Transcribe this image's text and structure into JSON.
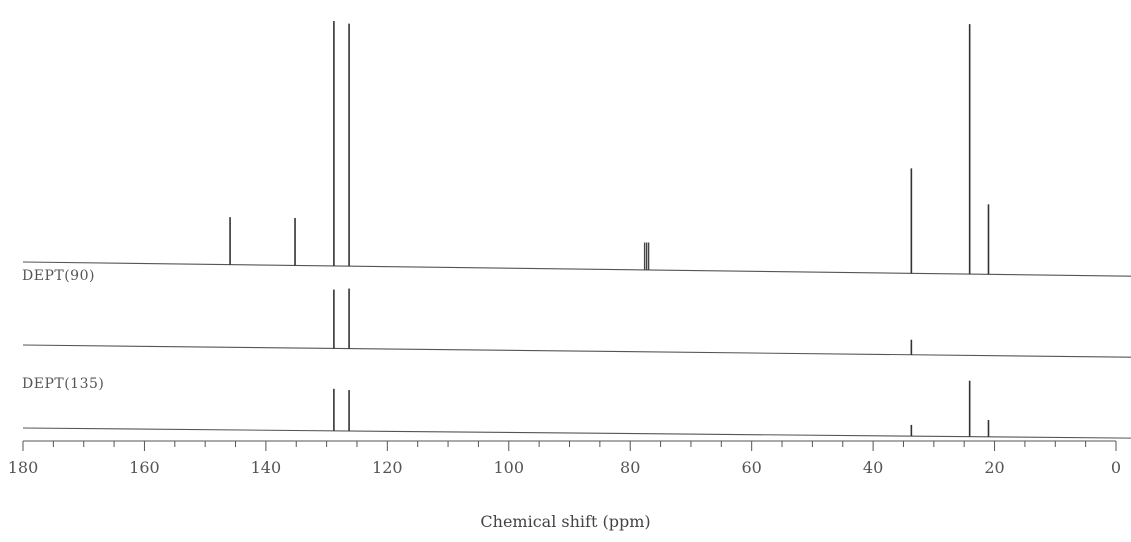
{
  "chart_data": {
    "type": "line",
    "title": "",
    "xlabel": "Chemical shift (ppm)",
    "ylabel": "",
    "xlim": [
      180,
      0
    ],
    "x_reversed": true,
    "x_ticks": [
      180,
      160,
      140,
      120,
      100,
      80,
      60,
      40,
      20,
      0
    ],
    "x_tick_labels": [
      "180",
      "160",
      "140",
      "120",
      "100",
      "80",
      "60",
      "40",
      "20",
      "0"
    ],
    "x_minor_tick_step": 5,
    "grid": false,
    "panels": [
      {
        "name": "",
        "peaks": [
          {
            "ppm": 145.9,
            "intensity": 0.19
          },
          {
            "ppm": 135.2,
            "intensity": 0.19
          },
          {
            "ppm": 128.8,
            "intensity": 0.98
          },
          {
            "ppm": 126.3,
            "intensity": 0.97
          },
          {
            "ppm": 77.3,
            "intensity": 0.11,
            "type": "triplet"
          },
          {
            "ppm": 33.7,
            "intensity": 0.42
          },
          {
            "ppm": 24.1,
            "intensity": 1.0
          },
          {
            "ppm": 21.0,
            "intensity": 0.28
          }
        ]
      },
      {
        "name": "DEPT(90)",
        "peaks": [
          {
            "ppm": 128.8,
            "intensity": 0.98
          },
          {
            "ppm": 126.3,
            "intensity": 1.0
          },
          {
            "ppm": 33.7,
            "intensity": 0.25
          }
        ]
      },
      {
        "name": "DEPT(135)",
        "peaks": [
          {
            "ppm": 128.8,
            "intensity": 0.75
          },
          {
            "ppm": 126.3,
            "intensity": 0.73
          },
          {
            "ppm": 33.7,
            "intensity": 0.2
          },
          {
            "ppm": 24.1,
            "intensity": 1.0
          },
          {
            "ppm": 21.0,
            "intensity": 0.3
          }
        ]
      }
    ]
  }
}
